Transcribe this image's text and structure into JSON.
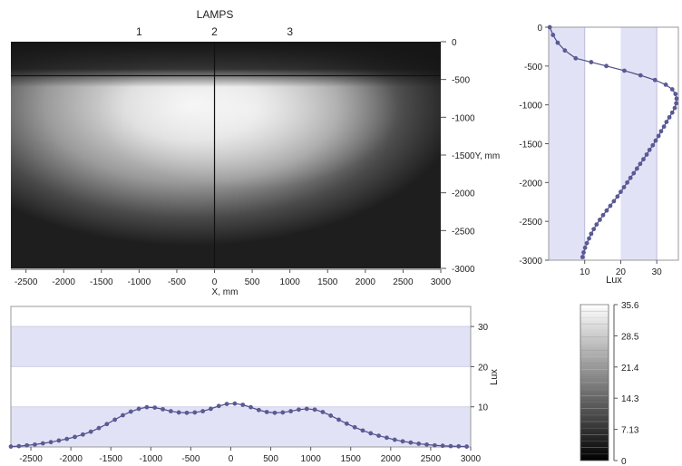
{
  "chart_data": [
    {
      "type": "heatmap",
      "title": "",
      "lamp_header": "LAMPS",
      "lamp_labels": [
        {
          "label": "1",
          "x": -1000
        },
        {
          "label": "2",
          "x": 0
        },
        {
          "label": "3",
          "x": 1000
        }
      ],
      "xlabel": "X, mm",
      "ylabel": "Y, mm",
      "xlim": [
        -2700,
        3000
      ],
      "ylim": [
        -3000,
        0
      ],
      "xticks": [
        -2500,
        -2000,
        -1500,
        -1000,
        -500,
        0,
        500,
        1000,
        1500,
        2000,
        2500,
        3000
      ],
      "yticks": [
        0,
        -500,
        -1000,
        -1500,
        -2000,
        -2500,
        -3000
      ],
      "ytick_labels": [
        "0",
        "-500",
        "-1000",
        "-1500Y, mm",
        "-2000",
        "-2500",
        "-3000"
      ],
      "crosshair": {
        "x": 0,
        "y": -450
      },
      "lamps_y": -800
    },
    {
      "type": "line",
      "orientation": "vertical-profile",
      "xlabel": "Lux",
      "ylabel": "",
      "xlim": [
        0,
        36
      ],
      "ylim": [
        -3000,
        0
      ],
      "xticks": [
        10,
        20,
        30
      ],
      "yticks": [
        0,
        -500,
        -1000,
        -1500,
        -2000,
        -2500,
        -3000
      ],
      "bands": [
        [
          0,
          10
        ],
        [
          20,
          30
        ]
      ],
      "points": [
        [
          0.3,
          0
        ],
        [
          1.2,
          -100
        ],
        [
          2.5,
          -200
        ],
        [
          4.5,
          -300
        ],
        [
          7.5,
          -400
        ],
        [
          11.8,
          -450
        ],
        [
          16,
          -500
        ],
        [
          21,
          -560
        ],
        [
          25.5,
          -620
        ],
        [
          29.5,
          -680
        ],
        [
          32.5,
          -740
        ],
        [
          34.3,
          -800
        ],
        [
          35.2,
          -860
        ],
        [
          35.5,
          -920
        ],
        [
          35.4,
          -980
        ],
        [
          35.0,
          -1040
        ],
        [
          34.3,
          -1100
        ],
        [
          33.5,
          -1160
        ],
        [
          32.7,
          -1220
        ],
        [
          32,
          -1280
        ],
        [
          31.2,
          -1340
        ],
        [
          30.5,
          -1400
        ],
        [
          29.7,
          -1460
        ],
        [
          28.9,
          -1520
        ],
        [
          28,
          -1580
        ],
        [
          27.2,
          -1640
        ],
        [
          26.3,
          -1700
        ],
        [
          25.4,
          -1760
        ],
        [
          24.5,
          -1820
        ],
        [
          23.6,
          -1880
        ],
        [
          22.7,
          -1940
        ],
        [
          21.8,
          -2000
        ],
        [
          20.9,
          -2060
        ],
        [
          20,
          -2120
        ],
        [
          19.1,
          -2180
        ],
        [
          18.1,
          -2240
        ],
        [
          17.1,
          -2300
        ],
        [
          16.1,
          -2360
        ],
        [
          15.1,
          -2420
        ],
        [
          14.2,
          -2480
        ],
        [
          13.3,
          -2540
        ],
        [
          12.5,
          -2600
        ],
        [
          11.8,
          -2660
        ],
        [
          11.2,
          -2720
        ],
        [
          10.6,
          -2780
        ],
        [
          10.1,
          -2840
        ],
        [
          9.7,
          -2900
        ],
        [
          9.4,
          -2960
        ]
      ]
    },
    {
      "type": "line",
      "orientation": "horizontal-profile",
      "xlabel": "",
      "ylabel": "Lux",
      "xlim": [
        -2750,
        3000
      ],
      "ylim": [
        0,
        35
      ],
      "xticks": [
        -2500,
        -2000,
        -1500,
        -1000,
        -500,
        0,
        500,
        1000,
        1500,
        2000,
        2500,
        3000
      ],
      "yticks": [
        10,
        20,
        30
      ],
      "bands": [
        [
          0,
          10
        ],
        [
          20,
          30
        ]
      ],
      "points": [
        [
          -2750,
          0.1
        ],
        [
          -2650,
          0.2
        ],
        [
          -2550,
          0.4
        ],
        [
          -2450,
          0.6
        ],
        [
          -2350,
          0.9
        ],
        [
          -2250,
          1.2
        ],
        [
          -2150,
          1.6
        ],
        [
          -2050,
          2.0
        ],
        [
          -1950,
          2.5
        ],
        [
          -1850,
          3.1
        ],
        [
          -1750,
          3.8
        ],
        [
          -1650,
          4.7
        ],
        [
          -1550,
          5.7
        ],
        [
          -1450,
          6.8
        ],
        [
          -1350,
          7.9
        ],
        [
          -1250,
          8.8
        ],
        [
          -1150,
          9.5
        ],
        [
          -1050,
          9.9
        ],
        [
          -950,
          9.8
        ],
        [
          -850,
          9.4
        ],
        [
          -750,
          8.9
        ],
        [
          -650,
          8.6
        ],
        [
          -550,
          8.5
        ],
        [
          -450,
          8.6
        ],
        [
          -350,
          8.9
        ],
        [
          -250,
          9.5
        ],
        [
          -150,
          10.2
        ],
        [
          -50,
          10.7
        ],
        [
          50,
          10.8
        ],
        [
          150,
          10.5
        ],
        [
          250,
          9.9
        ],
        [
          350,
          9.2
        ],
        [
          450,
          8.7
        ],
        [
          550,
          8.5
        ],
        [
          650,
          8.6
        ],
        [
          750,
          8.9
        ],
        [
          850,
          9.3
        ],
        [
          950,
          9.5
        ],
        [
          1050,
          9.3
        ],
        [
          1150,
          8.7
        ],
        [
          1250,
          7.8
        ],
        [
          1350,
          6.8
        ],
        [
          1450,
          5.8
        ],
        [
          1550,
          4.9
        ],
        [
          1650,
          4.1
        ],
        [
          1750,
          3.4
        ],
        [
          1850,
          2.8
        ],
        [
          1950,
          2.3
        ],
        [
          2050,
          1.8
        ],
        [
          2150,
          1.4
        ],
        [
          2250,
          1.1
        ],
        [
          2350,
          0.8
        ],
        [
          2450,
          0.6
        ],
        [
          2550,
          0.4
        ],
        [
          2650,
          0.3
        ],
        [
          2750,
          0.2
        ],
        [
          2850,
          0.15
        ],
        [
          2950,
          0.1
        ]
      ]
    },
    {
      "type": "colorbar",
      "ticks": [
        "35.6",
        "28.5",
        "21.4",
        "14.3",
        "7.13",
        "0"
      ],
      "range": [
        0,
        35.6
      ]
    }
  ],
  "colors": {
    "band": "#e2e2f6",
    "line": "#4b4b86",
    "marker": "#5a5a95",
    "axis": "#555555",
    "crosshair": "#111111"
  }
}
